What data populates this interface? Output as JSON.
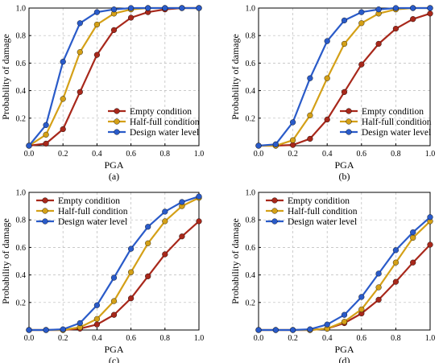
{
  "chart_data": [
    {
      "type": "line",
      "caption": "(a)",
      "xlabel": "PGA",
      "ylabel": "Probability of damage",
      "xlim": [
        0,
        1
      ],
      "ylim": [
        0,
        1
      ],
      "xticks": [
        "0.0",
        "0.2",
        "0.4",
        "0.6",
        "0.8",
        "1.0"
      ],
      "yticks": [
        "0.2",
        "0.4",
        "0.6",
        "0.8",
        "1.0"
      ],
      "grid": true,
      "legend_position": "bottom-right",
      "x": [
        0,
        0.1,
        0.2,
        0.3,
        0.4,
        0.5,
        0.6,
        0.7,
        0.8,
        0.9,
        1.0
      ],
      "series": [
        {
          "name": "Empty condition",
          "color": "#a8281b",
          "values": [
            0.0,
            0.015,
            0.12,
            0.39,
            0.66,
            0.84,
            0.93,
            0.97,
            0.99,
            1.0,
            1.0
          ]
        },
        {
          "name": "Half-full condition",
          "color": "#d4a017",
          "values": [
            0.0,
            0.08,
            0.34,
            0.68,
            0.88,
            0.96,
            0.99,
            1.0,
            1.0,
            1.0,
            1.0
          ]
        },
        {
          "name": "Design water level",
          "color": "#2a5bc9",
          "values": [
            0.0,
            0.15,
            0.61,
            0.89,
            0.97,
            0.99,
            1.0,
            1.0,
            1.0,
            1.0,
            1.0
          ]
        }
      ]
    },
    {
      "type": "line",
      "caption": "(b)",
      "xlabel": "PGA",
      "ylabel": "Probability of damage",
      "xlim": [
        0,
        1
      ],
      "ylim": [
        0,
        1
      ],
      "xticks": [
        "0.0",
        "0.2",
        "0.4",
        "0.6",
        "0.8",
        "1.0"
      ],
      "yticks": [
        "0.2",
        "0.4",
        "0.6",
        "0.8",
        "1.0"
      ],
      "grid": true,
      "legend_position": "bottom-right",
      "x": [
        0,
        0.1,
        0.2,
        0.3,
        0.4,
        0.5,
        0.6,
        0.7,
        0.8,
        0.9,
        1.0
      ],
      "series": [
        {
          "name": "Empty condition",
          "color": "#a8281b",
          "values": [
            0.0,
            0.0,
            0.005,
            0.05,
            0.19,
            0.39,
            0.59,
            0.74,
            0.85,
            0.92,
            0.96
          ]
        },
        {
          "name": "Half-full condition",
          "color": "#d4a017",
          "values": [
            0.0,
            0.0,
            0.04,
            0.22,
            0.49,
            0.74,
            0.89,
            0.96,
            0.99,
            1.0,
            1.0
          ]
        },
        {
          "name": "Design water level",
          "color": "#2a5bc9",
          "values": [
            0.0,
            0.01,
            0.17,
            0.49,
            0.76,
            0.91,
            0.97,
            0.99,
            1.0,
            1.0,
            1.0
          ]
        }
      ]
    },
    {
      "type": "line",
      "caption": "(c)",
      "xlabel": "PGA",
      "ylabel": "Probability of damage",
      "xlim": [
        0,
        1
      ],
      "ylim": [
        0,
        1
      ],
      "xticks": [
        "0.0",
        "0.2",
        "0.4",
        "0.6",
        "0.8",
        "1.0"
      ],
      "yticks": [
        "0.2",
        "0.4",
        "0.6",
        "0.8",
        "1.0"
      ],
      "grid": true,
      "legend_position": "top-left",
      "x": [
        0,
        0.1,
        0.2,
        0.3,
        0.4,
        0.5,
        0.6,
        0.7,
        0.8,
        0.9,
        1.0
      ],
      "series": [
        {
          "name": "Empty condition",
          "color": "#a8281b",
          "values": [
            0.0,
            0.0,
            0.0,
            0.01,
            0.04,
            0.11,
            0.23,
            0.39,
            0.55,
            0.68,
            0.79
          ]
        },
        {
          "name": "Half-full condition",
          "color": "#d4a017",
          "values": [
            0.0,
            0.0,
            0.0,
            0.02,
            0.08,
            0.21,
            0.42,
            0.63,
            0.79,
            0.9,
            0.96
          ]
        },
        {
          "name": "Design water level",
          "color": "#2a5bc9",
          "values": [
            0.0,
            0.0,
            0.005,
            0.05,
            0.18,
            0.38,
            0.59,
            0.75,
            0.86,
            0.93,
            0.97
          ]
        }
      ]
    },
    {
      "type": "line",
      "caption": "(d)",
      "xlabel": "PGA",
      "ylabel": "Probability of damage",
      "xlim": [
        0,
        1
      ],
      "ylim": [
        0,
        1
      ],
      "xticks": [
        "0.0",
        "0.2",
        "0.4",
        "0.6",
        "0.8",
        "1.0"
      ],
      "yticks": [
        "0.2",
        "0.4",
        "0.6",
        "0.8",
        "1.0"
      ],
      "grid": true,
      "legend_position": "top-left",
      "x": [
        0,
        0.1,
        0.2,
        0.3,
        0.4,
        0.5,
        0.6,
        0.7,
        0.8,
        0.9,
        1.0
      ],
      "series": [
        {
          "name": "Empty condition",
          "color": "#a8281b",
          "values": [
            0.0,
            0.0,
            0.0,
            0.0,
            0.01,
            0.05,
            0.12,
            0.22,
            0.35,
            0.49,
            0.62
          ]
        },
        {
          "name": "Half-full condition",
          "color": "#d4a017",
          "values": [
            0.0,
            0.0,
            0.0,
            0.0,
            0.01,
            0.06,
            0.15,
            0.31,
            0.49,
            0.67,
            0.79
          ]
        },
        {
          "name": "Design water level",
          "color": "#2a5bc9",
          "values": [
            0.0,
            0.0,
            0.0,
            0.005,
            0.04,
            0.11,
            0.24,
            0.41,
            0.58,
            0.71,
            0.82
          ]
        }
      ]
    }
  ]
}
